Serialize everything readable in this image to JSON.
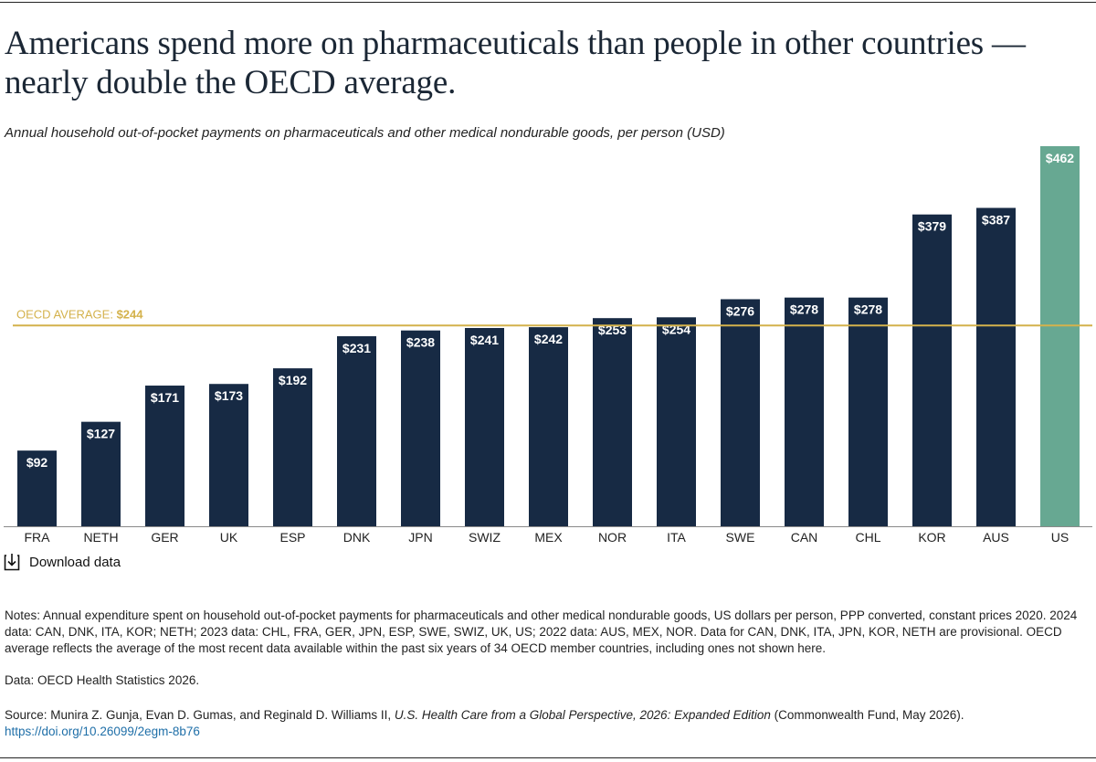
{
  "title": "Americans spend more on pharmaceuticals than people in other countries — nearly double the OECD average.",
  "subtitle": "Annual household out-of-pocket payments on pharmaceuticals and other medical nondurable goods, per person (USD)",
  "download_label": "Download data",
  "notes": "Notes: Annual expenditure spent on household out-of-pocket payments for pharmaceuticals and other medical nondurable goods, US dollars per person, PPP converted, constant prices 2020. 2024 data: CAN, DNK, ITA, KOR; NETH; 2023 data: CHL, FRA, GER, JPN, ESP, SWE, SWIZ, UK, US; 2022 data: AUS, MEX, NOR. Data for CAN, DNK, ITA, JPN, KOR, NETH are provisional. OECD average reflects the average of the most recent data available within the past six years of 34 OECD member countries, including ones not shown here.",
  "data_source": "Data: OECD Health Statistics 2026.",
  "source": {
    "prefix": "Source: Munira Z. Gunja, Evan D. Gumas, and Reginald D. Williams II, ",
    "title": "U.S. Health Care from a Global Perspective, 2026: Expanded Edition",
    "suffix": " (Commonwealth Fund, May 2026).",
    "link": "https://doi.org/10.26099/2egm-8b76"
  },
  "colors": {
    "bar": "#172a44",
    "highlight": "#67a892",
    "average_line": "#d4b24c",
    "label": "#ffffff",
    "axis_text": "#222222",
    "link": "#1f6fa8"
  },
  "chart_data": {
    "type": "bar",
    "categories": [
      "FRA",
      "NETH",
      "GER",
      "UK",
      "ESP",
      "DNK",
      "JPN",
      "SWIZ",
      "MEX",
      "NOR",
      "ITA",
      "SWE",
      "CAN",
      "CHL",
      "KOR",
      "AUS",
      "US"
    ],
    "values": [
      92,
      127,
      171,
      173,
      192,
      231,
      238,
      241,
      242,
      253,
      254,
      276,
      278,
      278,
      379,
      387,
      462
    ],
    "value_labels": [
      "$92",
      "$127",
      "$171",
      "$173",
      "$192",
      "$231",
      "$238",
      "$241",
      "$242",
      "$253",
      "$254",
      "$276",
      "$278",
      "$278",
      "$379",
      "$387",
      "$462"
    ],
    "highlight_category": "US",
    "reference_line": {
      "value": 244,
      "label_prefix": "OECD AVERAGE: ",
      "label_value": "$244"
    },
    "ylim": [
      0,
      462
    ],
    "grid": false,
    "legend": "none"
  }
}
